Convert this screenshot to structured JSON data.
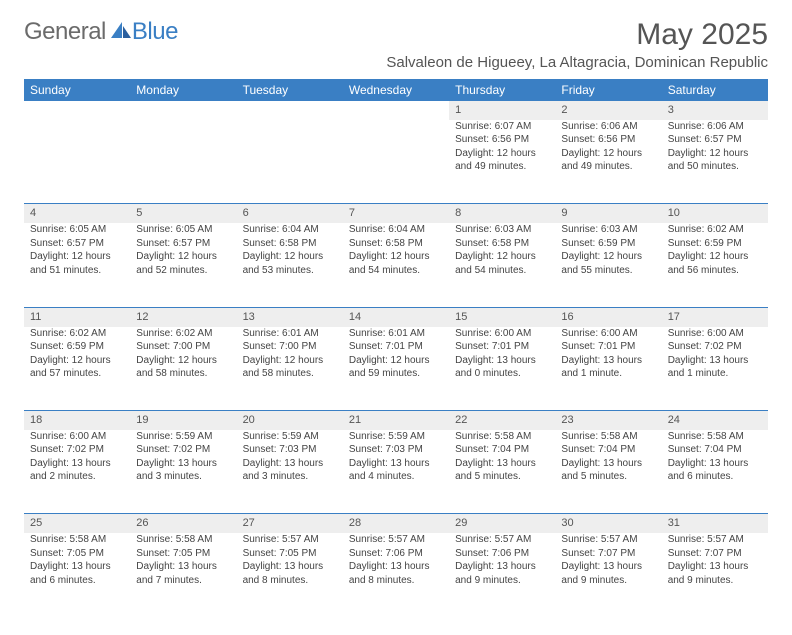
{
  "brand": {
    "part1": "General",
    "part2": "Blue"
  },
  "title": "May 2025",
  "location": "Salvaleon de Higueey, La Altagracia, Dominican Republic",
  "colors": {
    "header_bg": "#3a7fc4",
    "header_text": "#ffffff",
    "daynum_bg": "#eeeeee",
    "row_divider": "#3a7fc4",
    "body_text": "#444444",
    "title_text": "#555555",
    "logo_gray": "#6b6b6b",
    "logo_blue": "#3a7fc4",
    "page_bg": "#ffffff"
  },
  "fonts": {
    "title_size_pt": 30,
    "location_size_pt": 15,
    "weekday_size_pt": 12,
    "daynum_size_pt": 11,
    "cell_size_pt": 10
  },
  "weekdays": [
    "Sunday",
    "Monday",
    "Tuesday",
    "Wednesday",
    "Thursday",
    "Friday",
    "Saturday"
  ],
  "weeks": [
    [
      null,
      null,
      null,
      null,
      {
        "n": "1",
        "sr": "Sunrise: 6:07 AM",
        "ss": "Sunset: 6:56 PM",
        "d1": "Daylight: 12 hours",
        "d2": "and 49 minutes."
      },
      {
        "n": "2",
        "sr": "Sunrise: 6:06 AM",
        "ss": "Sunset: 6:56 PM",
        "d1": "Daylight: 12 hours",
        "d2": "and 49 minutes."
      },
      {
        "n": "3",
        "sr": "Sunrise: 6:06 AM",
        "ss": "Sunset: 6:57 PM",
        "d1": "Daylight: 12 hours",
        "d2": "and 50 minutes."
      }
    ],
    [
      {
        "n": "4",
        "sr": "Sunrise: 6:05 AM",
        "ss": "Sunset: 6:57 PM",
        "d1": "Daylight: 12 hours",
        "d2": "and 51 minutes."
      },
      {
        "n": "5",
        "sr": "Sunrise: 6:05 AM",
        "ss": "Sunset: 6:57 PM",
        "d1": "Daylight: 12 hours",
        "d2": "and 52 minutes."
      },
      {
        "n": "6",
        "sr": "Sunrise: 6:04 AM",
        "ss": "Sunset: 6:58 PM",
        "d1": "Daylight: 12 hours",
        "d2": "and 53 minutes."
      },
      {
        "n": "7",
        "sr": "Sunrise: 6:04 AM",
        "ss": "Sunset: 6:58 PM",
        "d1": "Daylight: 12 hours",
        "d2": "and 54 minutes."
      },
      {
        "n": "8",
        "sr": "Sunrise: 6:03 AM",
        "ss": "Sunset: 6:58 PM",
        "d1": "Daylight: 12 hours",
        "d2": "and 54 minutes."
      },
      {
        "n": "9",
        "sr": "Sunrise: 6:03 AM",
        "ss": "Sunset: 6:59 PM",
        "d1": "Daylight: 12 hours",
        "d2": "and 55 minutes."
      },
      {
        "n": "10",
        "sr": "Sunrise: 6:02 AM",
        "ss": "Sunset: 6:59 PM",
        "d1": "Daylight: 12 hours",
        "d2": "and 56 minutes."
      }
    ],
    [
      {
        "n": "11",
        "sr": "Sunrise: 6:02 AM",
        "ss": "Sunset: 6:59 PM",
        "d1": "Daylight: 12 hours",
        "d2": "and 57 minutes."
      },
      {
        "n": "12",
        "sr": "Sunrise: 6:02 AM",
        "ss": "Sunset: 7:00 PM",
        "d1": "Daylight: 12 hours",
        "d2": "and 58 minutes."
      },
      {
        "n": "13",
        "sr": "Sunrise: 6:01 AM",
        "ss": "Sunset: 7:00 PM",
        "d1": "Daylight: 12 hours",
        "d2": "and 58 minutes."
      },
      {
        "n": "14",
        "sr": "Sunrise: 6:01 AM",
        "ss": "Sunset: 7:01 PM",
        "d1": "Daylight: 12 hours",
        "d2": "and 59 minutes."
      },
      {
        "n": "15",
        "sr": "Sunrise: 6:00 AM",
        "ss": "Sunset: 7:01 PM",
        "d1": "Daylight: 13 hours",
        "d2": "and 0 minutes."
      },
      {
        "n": "16",
        "sr": "Sunrise: 6:00 AM",
        "ss": "Sunset: 7:01 PM",
        "d1": "Daylight: 13 hours",
        "d2": "and 1 minute."
      },
      {
        "n": "17",
        "sr": "Sunrise: 6:00 AM",
        "ss": "Sunset: 7:02 PM",
        "d1": "Daylight: 13 hours",
        "d2": "and 1 minute."
      }
    ],
    [
      {
        "n": "18",
        "sr": "Sunrise: 6:00 AM",
        "ss": "Sunset: 7:02 PM",
        "d1": "Daylight: 13 hours",
        "d2": "and 2 minutes."
      },
      {
        "n": "19",
        "sr": "Sunrise: 5:59 AM",
        "ss": "Sunset: 7:02 PM",
        "d1": "Daylight: 13 hours",
        "d2": "and 3 minutes."
      },
      {
        "n": "20",
        "sr": "Sunrise: 5:59 AM",
        "ss": "Sunset: 7:03 PM",
        "d1": "Daylight: 13 hours",
        "d2": "and 3 minutes."
      },
      {
        "n": "21",
        "sr": "Sunrise: 5:59 AM",
        "ss": "Sunset: 7:03 PM",
        "d1": "Daylight: 13 hours",
        "d2": "and 4 minutes."
      },
      {
        "n": "22",
        "sr": "Sunrise: 5:58 AM",
        "ss": "Sunset: 7:04 PM",
        "d1": "Daylight: 13 hours",
        "d2": "and 5 minutes."
      },
      {
        "n": "23",
        "sr": "Sunrise: 5:58 AM",
        "ss": "Sunset: 7:04 PM",
        "d1": "Daylight: 13 hours",
        "d2": "and 5 minutes."
      },
      {
        "n": "24",
        "sr": "Sunrise: 5:58 AM",
        "ss": "Sunset: 7:04 PM",
        "d1": "Daylight: 13 hours",
        "d2": "and 6 minutes."
      }
    ],
    [
      {
        "n": "25",
        "sr": "Sunrise: 5:58 AM",
        "ss": "Sunset: 7:05 PM",
        "d1": "Daylight: 13 hours",
        "d2": "and 6 minutes."
      },
      {
        "n": "26",
        "sr": "Sunrise: 5:58 AM",
        "ss": "Sunset: 7:05 PM",
        "d1": "Daylight: 13 hours",
        "d2": "and 7 minutes."
      },
      {
        "n": "27",
        "sr": "Sunrise: 5:57 AM",
        "ss": "Sunset: 7:05 PM",
        "d1": "Daylight: 13 hours",
        "d2": "and 8 minutes."
      },
      {
        "n": "28",
        "sr": "Sunrise: 5:57 AM",
        "ss": "Sunset: 7:06 PM",
        "d1": "Daylight: 13 hours",
        "d2": "and 8 minutes."
      },
      {
        "n": "29",
        "sr": "Sunrise: 5:57 AM",
        "ss": "Sunset: 7:06 PM",
        "d1": "Daylight: 13 hours",
        "d2": "and 9 minutes."
      },
      {
        "n": "30",
        "sr": "Sunrise: 5:57 AM",
        "ss": "Sunset: 7:07 PM",
        "d1": "Daylight: 13 hours",
        "d2": "and 9 minutes."
      },
      {
        "n": "31",
        "sr": "Sunrise: 5:57 AM",
        "ss": "Sunset: 7:07 PM",
        "d1": "Daylight: 13 hours",
        "d2": "and 9 minutes."
      }
    ]
  ]
}
